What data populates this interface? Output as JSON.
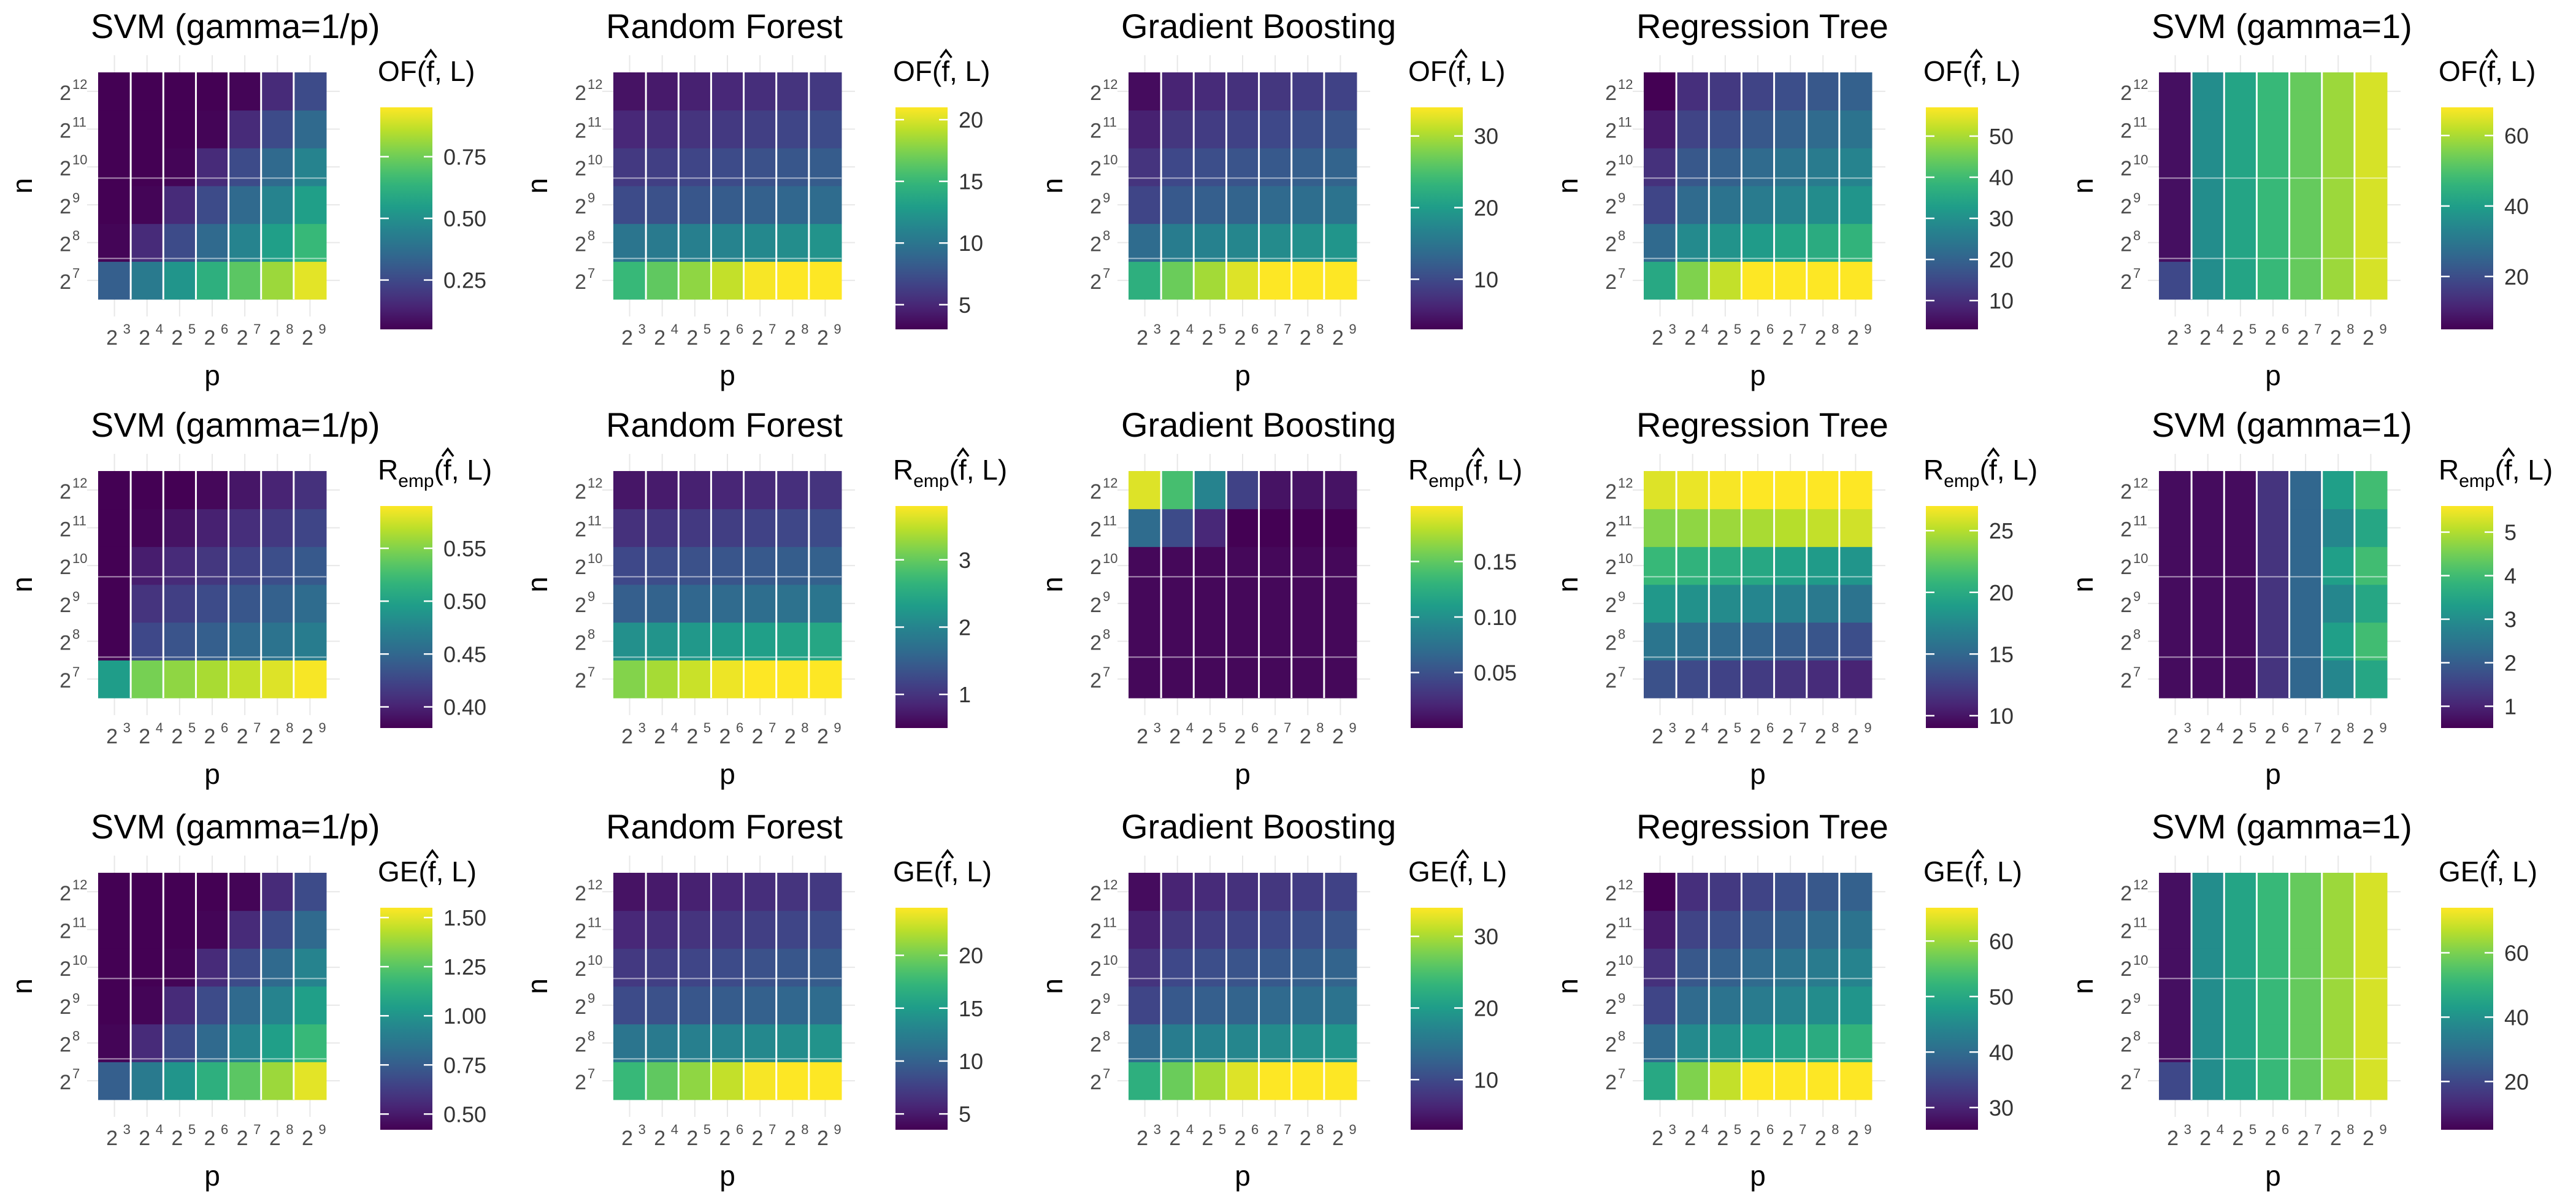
{
  "chart_data": [
    {
      "type": "heatmap",
      "title": "SVM (gamma=1/p)",
      "xlabel": "p",
      "ylabel": "n",
      "metric": "OF",
      "metric_sub": "",
      "metric_tail": "(f, L)",
      "x_exponents": [
        3,
        4,
        5,
        6,
        7,
        8,
        9
      ],
      "y_exponents": [
        7,
        8,
        9,
        10,
        11,
        12
      ],
      "color_ticks": [
        0.25,
        0.5,
        0.75
      ],
      "color_tick_labels": [
        "0.25",
        "0.50",
        "0.75"
      ],
      "color_range": [
        0.05,
        0.95
      ],
      "pattern": "svm_small",
      "colormap": "viridis"
    },
    {
      "type": "heatmap",
      "title": "Random Forest",
      "xlabel": "p",
      "ylabel": "n",
      "metric": "OF",
      "metric_sub": "",
      "metric_tail": "(f, L)",
      "x_exponents": [
        3,
        4,
        5,
        6,
        7,
        8,
        9
      ],
      "y_exponents": [
        7,
        8,
        9,
        10,
        11,
        12
      ],
      "color_ticks": [
        5,
        10,
        15,
        20
      ],
      "color_tick_labels": [
        "5",
        "10",
        "15",
        "20"
      ],
      "color_range": [
        3,
        21
      ],
      "pattern": "rf",
      "colormap": "viridis"
    },
    {
      "type": "heatmap",
      "title": "Gradient Boosting",
      "xlabel": "p",
      "ylabel": "n",
      "metric": "OF",
      "metric_sub": "",
      "metric_tail": "(f, L)",
      "x_exponents": [
        3,
        4,
        5,
        6,
        7,
        8,
        9
      ],
      "y_exponents": [
        7,
        8,
        9,
        10,
        11,
        12
      ],
      "color_ticks": [
        10,
        20,
        30
      ],
      "color_tick_labels": [
        "10",
        "20",
        "30"
      ],
      "color_range": [
        3,
        34
      ],
      "pattern": "gb",
      "colormap": "viridis"
    },
    {
      "type": "heatmap",
      "title": "Regression Tree",
      "xlabel": "p",
      "ylabel": "n",
      "metric": "OF",
      "metric_sub": "",
      "metric_tail": "(f, L)",
      "x_exponents": [
        3,
        4,
        5,
        6,
        7,
        8,
        9
      ],
      "y_exponents": [
        7,
        8,
        9,
        10,
        11,
        12
      ],
      "color_ticks": [
        10,
        20,
        30,
        40,
        50
      ],
      "color_tick_labels": [
        "10",
        "20",
        "30",
        "40",
        "50"
      ],
      "color_range": [
        3,
        57
      ],
      "pattern": "rt",
      "colormap": "viridis"
    },
    {
      "type": "heatmap",
      "title": "SVM (gamma=1)",
      "xlabel": "p",
      "ylabel": "n",
      "metric": "OF",
      "metric_sub": "",
      "metric_tail": "(f, L)",
      "x_exponents": [
        3,
        4,
        5,
        6,
        7,
        8,
        9
      ],
      "y_exponents": [
        7,
        8,
        9,
        10,
        11,
        12
      ],
      "color_ticks": [
        20,
        40,
        60
      ],
      "color_tick_labels": [
        "20",
        "40",
        "60"
      ],
      "color_range": [
        5,
        68
      ],
      "pattern": "svm1",
      "colormap": "viridis"
    },
    {
      "type": "heatmap",
      "title": "SVM (gamma=1/p)",
      "xlabel": "p",
      "ylabel": "n",
      "metric": "R",
      "metric_sub": "emp",
      "metric_tail": "(f, L)",
      "x_exponents": [
        3,
        4,
        5,
        6,
        7,
        8,
        9
      ],
      "y_exponents": [
        7,
        8,
        9,
        10,
        11,
        12
      ],
      "color_ticks": [
        0.4,
        0.45,
        0.5,
        0.55
      ],
      "color_tick_labels": [
        "0.40",
        "0.45",
        "0.50",
        "0.55"
      ],
      "color_range": [
        0.38,
        0.59
      ],
      "pattern": "svm_small_emp",
      "colormap": "viridis"
    },
    {
      "type": "heatmap",
      "title": "Random Forest",
      "xlabel": "p",
      "ylabel": "n",
      "metric": "R",
      "metric_sub": "emp",
      "metric_tail": "(f, L)",
      "x_exponents": [
        3,
        4,
        5,
        6,
        7,
        8,
        9
      ],
      "y_exponents": [
        7,
        8,
        9,
        10,
        11,
        12
      ],
      "color_ticks": [
        1,
        2,
        3
      ],
      "color_tick_labels": [
        "1",
        "2",
        "3"
      ],
      "color_range": [
        0.5,
        3.8
      ],
      "pattern": "rf_emp",
      "colormap": "viridis"
    },
    {
      "type": "heatmap",
      "title": "Gradient Boosting",
      "xlabel": "p",
      "ylabel": "n",
      "metric": "R",
      "metric_sub": "emp",
      "metric_tail": "(f, L)",
      "x_exponents": [
        3,
        4,
        5,
        6,
        7,
        8,
        9
      ],
      "y_exponents": [
        7,
        8,
        9,
        10,
        11,
        12
      ],
      "color_ticks": [
        0.05,
        0.1,
        0.15
      ],
      "color_tick_labels": [
        "0.05",
        "0.10",
        "0.15"
      ],
      "color_range": [
        0.0,
        0.2
      ],
      "pattern": "gb_emp",
      "colormap": "viridis"
    },
    {
      "type": "heatmap",
      "title": "Regression Tree",
      "xlabel": "p",
      "ylabel": "n",
      "metric": "R",
      "metric_sub": "emp",
      "metric_tail": "(f, L)",
      "x_exponents": [
        3,
        4,
        5,
        6,
        7,
        8,
        9
      ],
      "y_exponents": [
        7,
        8,
        9,
        10,
        11,
        12
      ],
      "color_ticks": [
        10,
        15,
        20,
        25
      ],
      "color_tick_labels": [
        "10",
        "15",
        "20",
        "25"
      ],
      "color_range": [
        9,
        27
      ],
      "pattern": "rt_emp",
      "colormap": "viridis"
    },
    {
      "type": "heatmap",
      "title": "SVM (gamma=1)",
      "xlabel": "p",
      "ylabel": "n",
      "metric": "R",
      "metric_sub": "emp",
      "metric_tail": "(f, L)",
      "x_exponents": [
        3,
        4,
        5,
        6,
        7,
        8,
        9
      ],
      "y_exponents": [
        7,
        8,
        9,
        10,
        11,
        12
      ],
      "color_ticks": [
        1,
        2,
        3,
        4,
        5
      ],
      "color_tick_labels": [
        "1",
        "2",
        "3",
        "4",
        "5"
      ],
      "color_range": [
        0.5,
        5.6
      ],
      "pattern": "svm1_emp",
      "colormap": "viridis"
    },
    {
      "type": "heatmap",
      "title": "SVM (gamma=1/p)",
      "xlabel": "p",
      "ylabel": "n",
      "metric": "GE",
      "metric_sub": "",
      "metric_tail": "(f, L)",
      "x_exponents": [
        3,
        4,
        5,
        6,
        7,
        8,
        9
      ],
      "y_exponents": [
        7,
        8,
        9,
        10,
        11,
        12
      ],
      "color_ticks": [
        0.5,
        0.75,
        1.0,
        1.25,
        1.5
      ],
      "color_tick_labels": [
        "0.50",
        "0.75",
        "1.00",
        "1.25",
        "1.50"
      ],
      "color_range": [
        0.42,
        1.55
      ],
      "pattern": "svm_small",
      "colormap": "viridis"
    },
    {
      "type": "heatmap",
      "title": "Random Forest",
      "xlabel": "p",
      "ylabel": "n",
      "metric": "GE",
      "metric_sub": "",
      "metric_tail": "(f, L)",
      "x_exponents": [
        3,
        4,
        5,
        6,
        7,
        8,
        9
      ],
      "y_exponents": [
        7,
        8,
        9,
        10,
        11,
        12
      ],
      "color_ticks": [
        5,
        10,
        15,
        20
      ],
      "color_tick_labels": [
        "5",
        "10",
        "15",
        "20"
      ],
      "color_range": [
        3.5,
        24.5
      ],
      "pattern": "rf",
      "colormap": "viridis"
    },
    {
      "type": "heatmap",
      "title": "Gradient Boosting",
      "xlabel": "p",
      "ylabel": "n",
      "metric": "GE",
      "metric_sub": "",
      "metric_tail": "(f, L)",
      "x_exponents": [
        3,
        4,
        5,
        6,
        7,
        8,
        9
      ],
      "y_exponents": [
        7,
        8,
        9,
        10,
        11,
        12
      ],
      "color_ticks": [
        10,
        20,
        30
      ],
      "color_tick_labels": [
        "10",
        "20",
        "30"
      ],
      "color_range": [
        3,
        34
      ],
      "pattern": "gb",
      "colormap": "viridis"
    },
    {
      "type": "heatmap",
      "title": "Regression Tree",
      "xlabel": "p",
      "ylabel": "n",
      "metric": "GE",
      "metric_sub": "",
      "metric_tail": "(f, L)",
      "x_exponents": [
        3,
        4,
        5,
        6,
        7,
        8,
        9
      ],
      "y_exponents": [
        7,
        8,
        9,
        10,
        11,
        12
      ],
      "color_ticks": [
        30,
        40,
        50,
        60
      ],
      "color_tick_labels": [
        "30",
        "40",
        "50",
        "60"
      ],
      "color_range": [
        26,
        66
      ],
      "pattern": "rt",
      "colormap": "viridis"
    },
    {
      "type": "heatmap",
      "title": "SVM (gamma=1)",
      "xlabel": "p",
      "ylabel": "n",
      "metric": "GE",
      "metric_sub": "",
      "metric_tail": "(f, L)",
      "x_exponents": [
        3,
        4,
        5,
        6,
        7,
        8,
        9
      ],
      "y_exponents": [
        7,
        8,
        9,
        10,
        11,
        12
      ],
      "color_ticks": [
        20,
        40,
        60
      ],
      "color_tick_labels": [
        "20",
        "40",
        "60"
      ],
      "color_range": [
        5,
        74
      ],
      "pattern": "svm1",
      "colormap": "viridis"
    }
  ],
  "colors": {
    "grid": "#e8e8e8",
    "cell_separator": "#ffffff",
    "viridis": [
      "#440154",
      "#482878",
      "#3e4989",
      "#31688e",
      "#26828e",
      "#1f9e89",
      "#35b779",
      "#6ece58",
      "#b5de2b",
      "#fde725"
    ]
  }
}
